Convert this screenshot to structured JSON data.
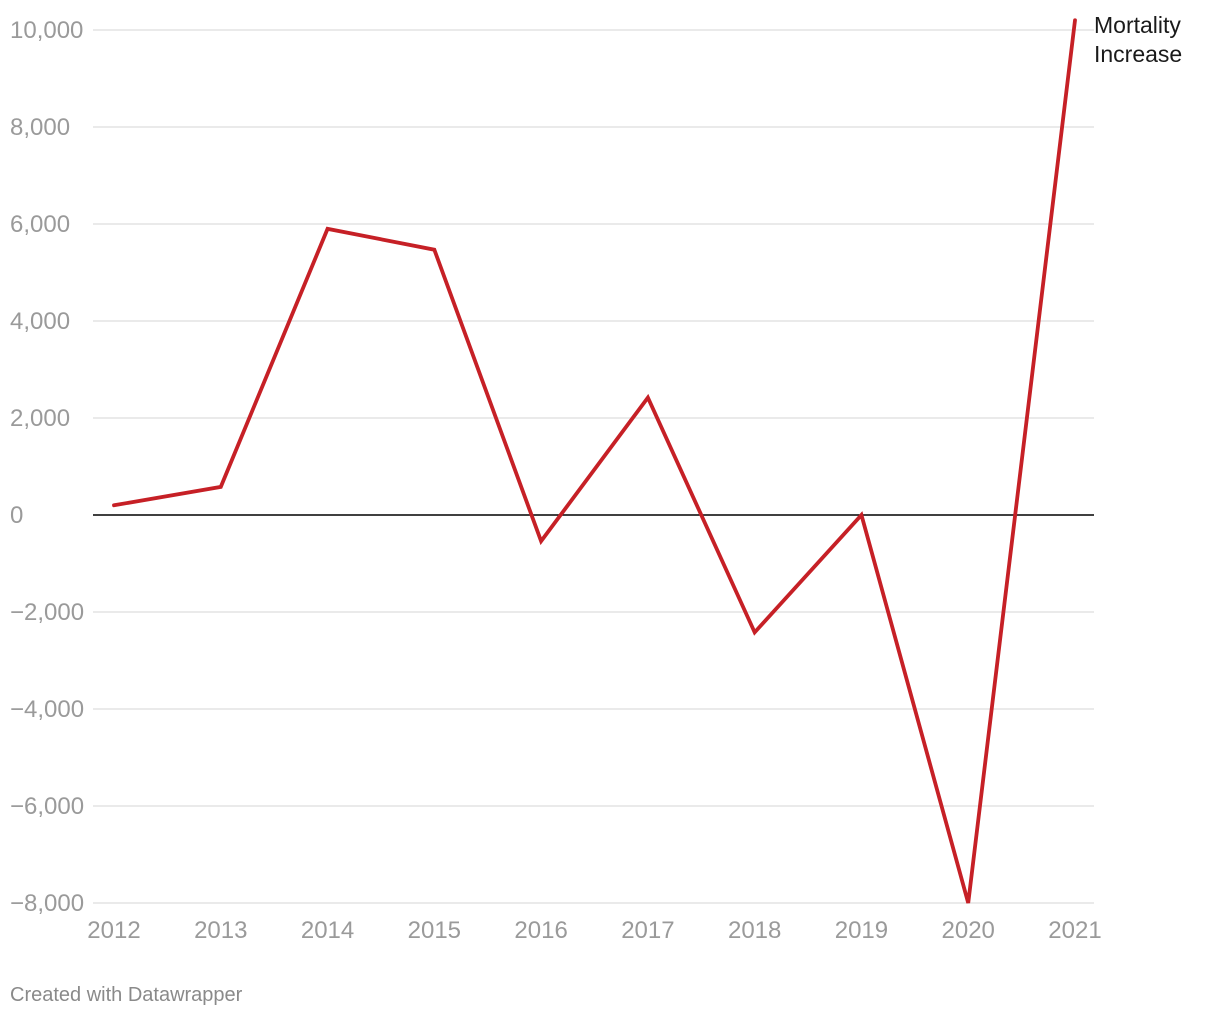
{
  "chart_data": {
    "type": "line",
    "x": [
      "2012",
      "2013",
      "2014",
      "2015",
      "2016",
      "2017",
      "2018",
      "2019",
      "2020",
      "2021"
    ],
    "series": [
      {
        "name": "Mortality Increase",
        "values": [
          200,
          580,
          5900,
          5470,
          -540,
          2420,
          -2420,
          0,
          -8000,
          10200
        ],
        "color": "#c62026"
      }
    ],
    "ylim": [
      -8000,
      10000
    ],
    "yticks": [
      10000,
      8000,
      6000,
      4000,
      2000,
      0,
      -2000,
      -4000,
      -6000,
      -8000
    ],
    "ytick_labels": [
      "10,000",
      "8,000",
      "6,000",
      "4,000",
      "2,000",
      "0",
      "−2,000",
      "−4,000",
      "−6,000",
      "−8,000"
    ],
    "grid": true,
    "zero_line": true,
    "legend": "direct label at end of line",
    "title": "",
    "xlabel": "",
    "ylabel": ""
  },
  "series_label_lines": [
    "Mortality",
    "Increase"
  ],
  "credit": "Created with Datawrapper",
  "colors": {
    "line": "#c62026",
    "grid": "#dddddd",
    "zero_line": "#000000",
    "tick_text": "#9a9a9a"
  }
}
